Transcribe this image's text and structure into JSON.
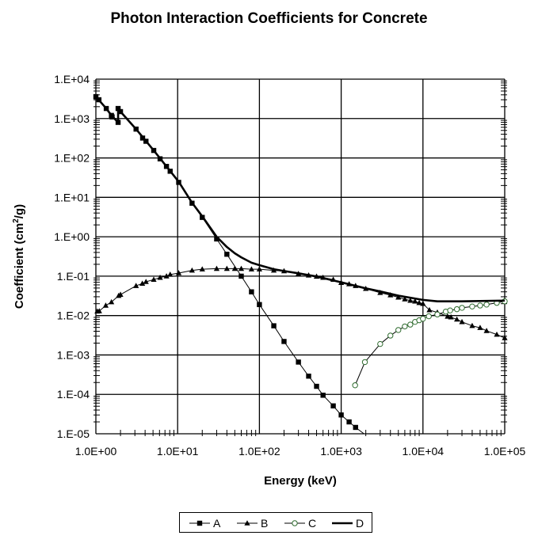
{
  "chart_data": {
    "type": "line",
    "title": "Photon Interaction Coefficients for Concrete",
    "xlabel": "Energy (keV)",
    "ylabel": {
      "prefix": "Coefficient (cm",
      "sup": "2",
      "suffix": "/g)"
    },
    "xscale": "log",
    "yscale": "log",
    "xlim": [
      1,
      100000
    ],
    "ylim": [
      1e-05,
      10000
    ],
    "x_tick_labels": [
      "1.0E+00",
      "1.0E+01",
      "1.0E+02",
      "1.0E+03",
      "1.0E+04",
      "1.0E+05"
    ],
    "y_tick_labels": [
      "1.E+04",
      "1.E+03",
      "1.E+02",
      "1.E+01",
      "1.E+00",
      "1.E-01",
      "1.E-02",
      "1.E-03",
      "1.E-04",
      "1.E-05"
    ],
    "grid": true,
    "legend_position": "bottom",
    "series": [
      {
        "name": "A",
        "marker": "square",
        "color": "#000000",
        "x": [
          1,
          1.09,
          1.34,
          1.55,
          1.58,
          1.87,
          1.87,
          2.0,
          3.1,
          3.73,
          4.1,
          5.1,
          6.1,
          7.3,
          8.1,
          10.3,
          15,
          20,
          30,
          40,
          60,
          80,
          100,
          150,
          200,
          300,
          400,
          500,
          600,
          800,
          1000,
          1250,
          1500,
          1900
        ],
        "y": [
          3600,
          3000,
          1800,
          1200,
          1100,
          800,
          1800,
          1500,
          540,
          320,
          265,
          155,
          95,
          61,
          46,
          24,
          7.1,
          3.1,
          0.88,
          0.36,
          0.1,
          0.04,
          0.019,
          0.0055,
          0.0022,
          0.00066,
          0.00029,
          0.00016,
          9.5e-05,
          5.1e-05,
          3e-05,
          2e-05,
          1.45e-05,
          1e-05
        ]
      },
      {
        "name": "B",
        "marker": "triangle",
        "color": "#000000",
        "x": [
          1.04,
          1.1,
          1.32,
          1.55,
          1.9,
          2.0,
          3.1,
          3.7,
          4.1,
          5.1,
          6.1,
          7.3,
          8.1,
          10.3,
          15,
          20,
          30,
          40,
          50,
          60,
          80,
          100,
          150,
          200,
          300,
          400,
          500,
          600,
          800,
          1000,
          1250,
          1500,
          2000,
          3000,
          4000,
          5000,
          6000,
          7000,
          8000,
          9000,
          10000,
          12000,
          15000,
          20000,
          22000,
          26000,
          30000,
          40000,
          50000,
          60000,
          80000,
          100000
        ],
        "y": [
          0.0128,
          0.013,
          0.018,
          0.022,
          0.032,
          0.034,
          0.057,
          0.065,
          0.072,
          0.082,
          0.092,
          0.1,
          0.11,
          0.12,
          0.14,
          0.15,
          0.155,
          0.155,
          0.155,
          0.155,
          0.15,
          0.15,
          0.14,
          0.135,
          0.115,
          0.105,
          0.098,
          0.092,
          0.082,
          0.068,
          0.063,
          0.057,
          0.048,
          0.038,
          0.033,
          0.029,
          0.026,
          0.024,
          0.023,
          0.021,
          0.02,
          0.0138,
          0.012,
          0.0095,
          0.0091,
          0.008,
          0.0069,
          0.0055,
          0.0049,
          0.0041,
          0.0033,
          0.0027
        ]
      },
      {
        "name": "C",
        "marker": "circle-open",
        "color": "#2e6b2e",
        "x": [
          1480,
          1950,
          3000,
          4000,
          5000,
          6000,
          7000,
          8000,
          9000,
          10000,
          11800,
          15000,
          19000,
          21500,
          26000,
          30000,
          40000,
          50000,
          60000,
          80000,
          100000
        ],
        "y": [
          0.00017,
          0.00066,
          0.0019,
          0.0031,
          0.0043,
          0.0053,
          0.0059,
          0.0069,
          0.0076,
          0.0083,
          0.0096,
          0.0107,
          0.0126,
          0.0135,
          0.0145,
          0.0157,
          0.017,
          0.018,
          0.019,
          0.021,
          0.023
        ]
      },
      {
        "name": "D",
        "marker": "none",
        "color": "#000000",
        "x": [
          1,
          1.34,
          1.55,
          1.87,
          1.87,
          2.0,
          3.1,
          5.1,
          10.3,
          15,
          20,
          30,
          40,
          50,
          60,
          80,
          100,
          150,
          200,
          300,
          500,
          1000,
          2000,
          3000,
          5000,
          10000,
          15000,
          30000,
          100000
        ],
        "y": [
          3600,
          1800,
          1200,
          800,
          1800,
          1500,
          540,
          155,
          25,
          7.3,
          3.3,
          1.0,
          0.55,
          0.38,
          0.3,
          0.22,
          0.19,
          0.15,
          0.135,
          0.118,
          0.098,
          0.07,
          0.049,
          0.041,
          0.032,
          0.025,
          0.023,
          0.023,
          0.024
        ]
      }
    ]
  }
}
